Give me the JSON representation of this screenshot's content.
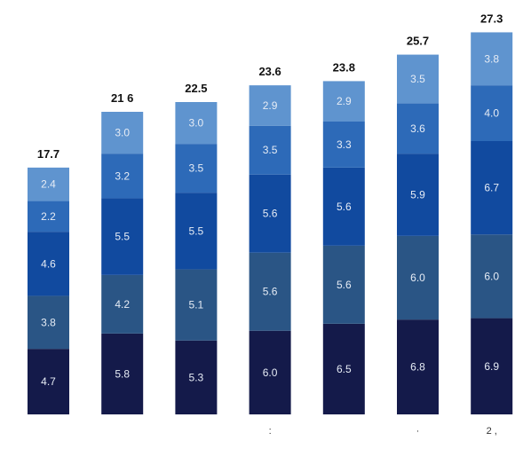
{
  "chart_data": {
    "type": "bar",
    "stacked": true,
    "categories": [
      "",
      "",
      "",
      ":",
      "",
      "·",
      "2 ,"
    ],
    "series": [
      {
        "color": "#141a4a",
        "values": [
          4.7,
          5.8,
          5.3,
          6.0,
          6.5,
          6.8,
          6.9
        ]
      },
      {
        "color": "#2a5585",
        "values": [
          3.8,
          4.2,
          5.1,
          5.6,
          5.6,
          6.0,
          6.0
        ]
      },
      {
        "color": "#114a9f",
        "values": [
          4.6,
          5.5,
          5.5,
          5.6,
          5.6,
          5.9,
          6.7
        ]
      },
      {
        "color": "#2d6ab8",
        "values": [
          2.2,
          3.2,
          3.5,
          3.5,
          3.3,
          3.6,
          4.0
        ]
      },
      {
        "color": "#5f94cf",
        "values": [
          2.4,
          3.0,
          3.0,
          2.9,
          2.9,
          3.5,
          3.8
        ]
      }
    ],
    "totals": [
      "17.7",
      "21 6",
      "22.5",
      "23.6",
      "23.8",
      "25.7",
      "27.3"
    ],
    "ylim": [
      0,
      27.3
    ],
    "grid": false,
    "legend": "none"
  }
}
